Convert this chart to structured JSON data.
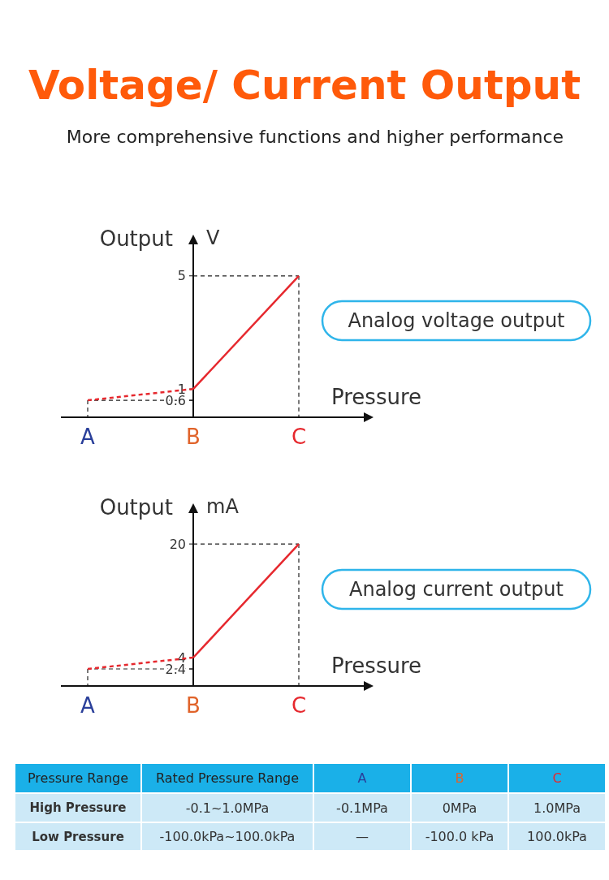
{
  "chart_data": [
    {
      "type": "line",
      "title": "Voltage/ Current Output",
      "subtitle": "More comprehensive functions and higher performance",
      "xlabel": "Pressure",
      "ylabel": "Output",
      "annotations": [
        "V",
        "Analog voltage output"
      ],
      "categories": [
        "A",
        "B",
        "C"
      ],
      "ylim": [
        0,
        6.4
      ],
      "yticks": [
        0.6,
        1,
        5
      ],
      "series": [
        {
          "color": "#e6282e",
          "values": [
            0.6,
            1,
            null
          ],
          "line_style": "dashed"
        },
        {
          "color": "#e6282e",
          "values": [
            null,
            1,
            5
          ],
          "line_style": "solid"
        }
      ],
      "ref_lines": [
        {
          "axis": "y",
          "value": 5,
          "color": "#222222",
          "line_style": "dashed"
        },
        {
          "axis": "y",
          "value": 0.6,
          "color": "#222222",
          "line_style": "dashed"
        },
        {
          "axis": "x",
          "value": "A",
          "color": "#222222",
          "line_style": "dashed"
        },
        {
          "axis": "x",
          "value": "C",
          "color": "#222222",
          "line_style": "dashed"
        }
      ]
    },
    {
      "type": "line",
      "xlabel": "Pressure",
      "ylabel": "Output",
      "annotations": [
        "mA",
        "Analog current output"
      ],
      "categories": [
        "A",
        "B",
        "C"
      ],
      "ylim": [
        0,
        25.5
      ],
      "yticks": [
        2.4,
        4,
        20
      ],
      "series": [
        {
          "color": "#e6282e",
          "values": [
            2.4,
            4,
            null
          ],
          "line_style": "dashed"
        },
        {
          "color": "#e6282e",
          "values": [
            null,
            4,
            20
          ],
          "line_style": "solid"
        }
      ],
      "ref_lines": [
        {
          "axis": "y",
          "value": 20,
          "color": "#222222",
          "line_style": "dashed"
        },
        {
          "axis": "y",
          "value": 2.4,
          "color": "#222222",
          "line_style": "dashed"
        },
        {
          "axis": "x",
          "value": "A",
          "color": "#222222",
          "line_style": "dashed"
        },
        {
          "axis": "x",
          "value": "C",
          "color": "#222222",
          "line_style": "dashed"
        }
      ]
    },
    {
      "type": "other",
      "annotations": [
        "Pressure Range",
        "Rated Pressure Range",
        "A",
        "B",
        "C",
        "High Pressure",
        "-0.1~1.0MPa",
        "-0.1MPa",
        "0MPa",
        "1.0MPa",
        "Low Pressure",
        "-100.0kPa~100.0kPa",
        "—",
        "-100.0 kPa",
        "100.0kPa"
      ]
    }
  ]
}
